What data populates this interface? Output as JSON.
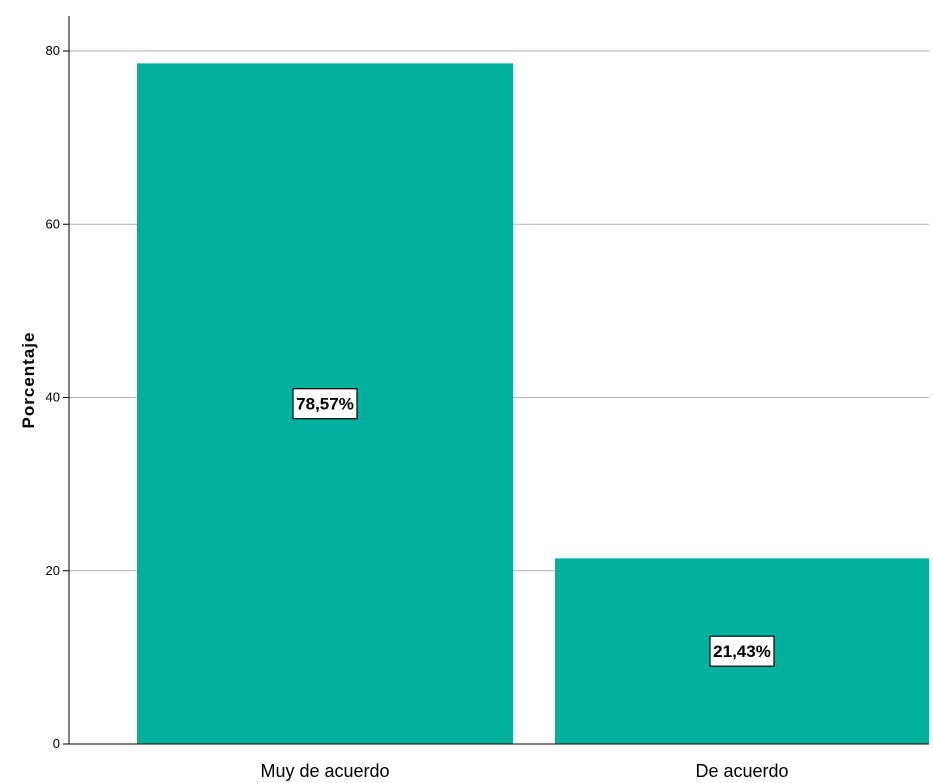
{
  "chart_data": {
    "type": "bar",
    "categories": [
      "Muy de acuerdo",
      "De acuerdo"
    ],
    "values": [
      78.57,
      21.43
    ],
    "data_labels": [
      "78,57%",
      "21,43%"
    ],
    "xlabel": "",
    "ylabel": "Porcentaje",
    "ylim": [
      0,
      80
    ],
    "yticks": [
      0,
      20,
      40,
      60,
      80
    ],
    "ytick_labels": [
      "0",
      "20",
      "40",
      "60",
      "80"
    ],
    "grid": "horizontal",
    "bar_color": "#00b09e",
    "grid_color": "#b3b3b3"
  }
}
